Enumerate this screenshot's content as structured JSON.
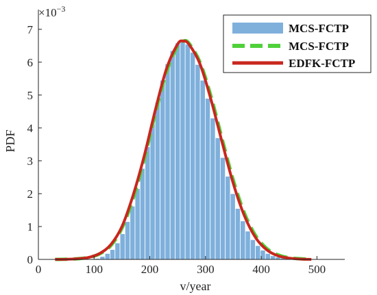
{
  "chart_data": {
    "type": "bar",
    "title": "",
    "xlabel": "v/year",
    "ylabel": "PDF",
    "y_scale_label": "×10",
    "y_scale_exponent": "−3",
    "xlim": [
      0,
      550
    ],
    "ylim": [
      0,
      7.6
    ],
    "x_ticks": [
      0,
      100,
      200,
      300,
      400,
      500
    ],
    "y_ticks": [
      0,
      1,
      2,
      3,
      4,
      5,
      6,
      7
    ],
    "grid": false,
    "legend_position": "top-right",
    "legend": [
      {
        "label": "MCS-FCTP",
        "style": "bar",
        "color": "#7fb0dc"
      },
      {
        "label": "MCS-FCTP",
        "style": "dashed-line",
        "color": "#4fd13a"
      },
      {
        "label": "EDFK-FCTP",
        "style": "line",
        "color": "#c8271e"
      }
    ],
    "histogram": {
      "bin_width": 9,
      "bin_centers": [
        106,
        115,
        124,
        133,
        142,
        151,
        160,
        169,
        178,
        187,
        196,
        205,
        214,
        223,
        232,
        241,
        250,
        259,
        268,
        277,
        286,
        295,
        304,
        313,
        322,
        331,
        340,
        349,
        358,
        367,
        376,
        385,
        394,
        403,
        412,
        421,
        430,
        439,
        448,
        457,
        466
      ],
      "values": [
        0.03,
        0.09,
        0.18,
        0.3,
        0.5,
        0.78,
        1.15,
        1.62,
        2.15,
        2.77,
        3.43,
        4.12,
        4.78,
        5.45,
        5.95,
        6.35,
        6.58,
        6.62,
        6.55,
        6.3,
        5.93,
        5.45,
        4.9,
        4.3,
        3.7,
        3.1,
        2.53,
        2.0,
        1.55,
        1.17,
        0.86,
        0.6,
        0.42,
        0.28,
        0.18,
        0.11,
        0.07,
        0.04,
        0.025,
        0.015,
        0.008
      ]
    },
    "series": [
      {
        "name": "MCS-FCTP",
        "style": "dashed-line",
        "x": [
          30,
          50,
          70,
          90,
          110,
          130,
          150,
          170,
          190,
          210,
          230,
          250,
          260,
          270,
          290,
          310,
          330,
          350,
          370,
          390,
          410,
          430,
          450,
          470,
          490
        ],
        "y": [
          0.0,
          0.005,
          0.02,
          0.06,
          0.17,
          0.42,
          0.95,
          1.85,
          3.05,
          4.45,
          5.7,
          6.5,
          6.64,
          6.58,
          6.0,
          4.95,
          3.65,
          2.4,
          1.4,
          0.72,
          0.33,
          0.14,
          0.05,
          0.02,
          0.0
        ]
      },
      {
        "name": "EDFK-FCTP",
        "style": "line",
        "x": [
          30,
          50,
          70,
          90,
          110,
          130,
          150,
          170,
          190,
          210,
          230,
          250,
          260,
          270,
          290,
          310,
          330,
          350,
          370,
          390,
          410,
          430,
          450,
          470,
          490
        ],
        "y": [
          0.0,
          0.003,
          0.02,
          0.06,
          0.18,
          0.45,
          1.0,
          1.95,
          3.15,
          4.55,
          5.8,
          6.55,
          6.64,
          6.55,
          5.95,
          4.85,
          3.55,
          2.3,
          1.32,
          0.66,
          0.29,
          0.11,
          0.04,
          0.01,
          0.0
        ]
      }
    ]
  }
}
